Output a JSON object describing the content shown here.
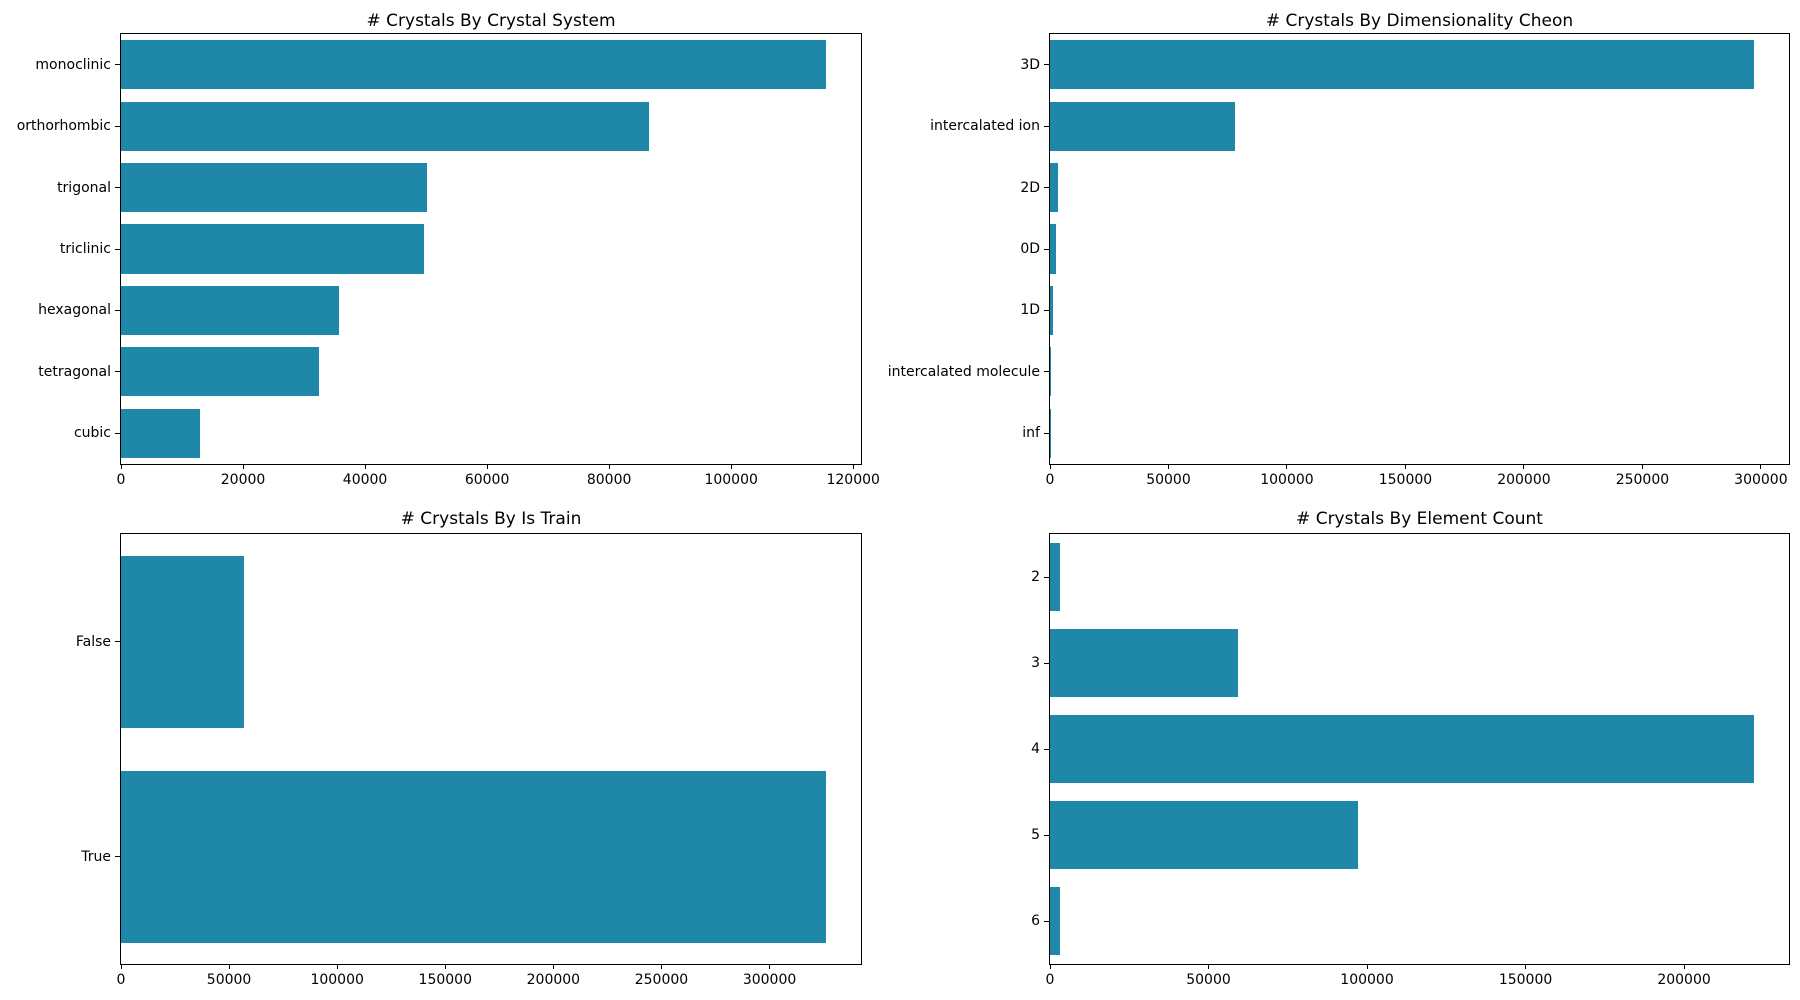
{
  "figure": {
    "background": "#ffffff"
  },
  "style": {
    "bar_color": "#1f87a8",
    "text_color": "#000000",
    "spine_color": "#000000"
  },
  "chart_data": [
    {
      "type": "bar",
      "orientation": "horizontal",
      "title": "# Crystals By Crystal System",
      "categories": [
        "monoclinic",
        "orthorhombic",
        "trigonal",
        "triclinic",
        "hexagonal",
        "tetragonal",
        "cubic"
      ],
      "values": [
        115500,
        86600,
        50200,
        49600,
        35700,
        32400,
        12900
      ],
      "xlabel": "",
      "ylabel": "",
      "xticks": [
        0,
        20000,
        40000,
        60000,
        80000,
        100000,
        120000
      ],
      "xlim": [
        0,
        121275
      ],
      "grid": false,
      "legend": false
    },
    {
      "type": "bar",
      "orientation": "horizontal",
      "title": "# Crystals By Dimensionality Cheon",
      "categories": [
        "3D",
        "intercalated ion",
        "2D",
        "0D",
        "1D",
        "intercalated molecule",
        "inf"
      ],
      "values": [
        297000,
        78000,
        3200,
        2500,
        1300,
        250,
        60
      ],
      "xlabel": "",
      "ylabel": "",
      "xticks": [
        0,
        50000,
        100000,
        150000,
        200000,
        250000,
        300000
      ],
      "xlim": [
        0,
        311850
      ],
      "grid": false,
      "legend": false
    },
    {
      "type": "bar",
      "orientation": "horizontal",
      "title": "# Crystals By Is Train",
      "categories": [
        "False",
        "True"
      ],
      "values": [
        57000,
        326000
      ],
      "xlabel": "",
      "ylabel": "",
      "xticks": [
        0,
        50000,
        100000,
        150000,
        200000,
        250000,
        300000
      ],
      "xlim": [
        0,
        342300
      ],
      "grid": false,
      "legend": false
    },
    {
      "type": "bar",
      "orientation": "horizontal",
      "title": "# Crystals By Element Count",
      "categories": [
        "2",
        "3",
        "4",
        "5",
        "6"
      ],
      "values": [
        3100,
        59300,
        222000,
        97300,
        3200
      ],
      "xlabel": "",
      "ylabel": "",
      "xticks": [
        0,
        50000,
        100000,
        150000,
        200000
      ],
      "xlim": [
        0,
        233100
      ],
      "grid": false,
      "legend": false
    }
  ]
}
